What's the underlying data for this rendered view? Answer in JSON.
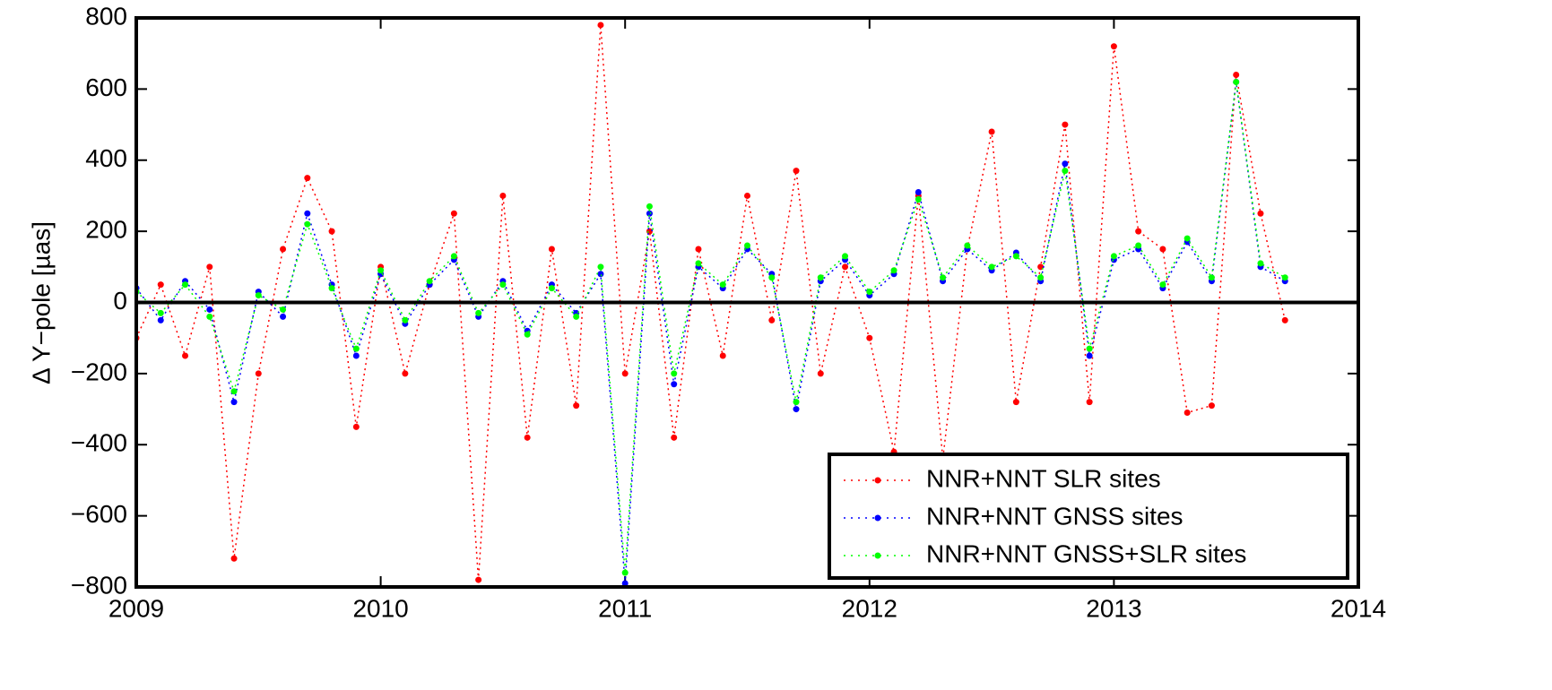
{
  "chart_data": {
    "type": "line",
    "y_label": "Δ Y−pole [µas]",
    "x": [
      2009.0,
      2009.1,
      2009.2,
      2009.3,
      2009.4,
      2009.5,
      2009.6,
      2009.7,
      2009.8,
      2009.9,
      2010.0,
      2010.1,
      2010.2,
      2010.3,
      2010.4,
      2010.5,
      2010.6,
      2010.7,
      2010.8,
      2010.9,
      2011.0,
      2011.1,
      2011.2,
      2011.3,
      2011.4,
      2011.5,
      2011.6,
      2011.7,
      2011.8,
      2011.9,
      2012.0,
      2012.1,
      2012.2,
      2012.3,
      2012.4,
      2012.5,
      2012.6,
      2012.7,
      2012.8,
      2012.9,
      2013.0,
      2013.1,
      2013.2,
      2013.3,
      2013.4,
      2013.5,
      2013.6,
      2013.7
    ],
    "series": [
      {
        "name": "NNR+NNT SLR sites",
        "color": "#ff0000",
        "values": [
          -100,
          50,
          -150,
          100,
          -720,
          -200,
          150,
          350,
          200,
          -350,
          100,
          -200,
          50,
          250,
          -780,
          300,
          -380,
          150,
          -290,
          780,
          -200,
          200,
          -380,
          150,
          -150,
          300,
          -50,
          370,
          -200,
          100,
          -100,
          -420,
          300,
          -440,
          150,
          480,
          -280,
          100,
          500,
          -280,
          720,
          200,
          150,
          -310,
          -290,
          640,
          250,
          -50
        ]
      },
      {
        "name": "NNR+NNT GNSS sites",
        "color": "#0000ff",
        "values": [
          40,
          -50,
          60,
          -20,
          -280,
          30,
          -40,
          250,
          50,
          -150,
          80,
          -60,
          50,
          120,
          -40,
          60,
          -80,
          50,
          -30,
          80,
          -790,
          250,
          -230,
          100,
          40,
          150,
          80,
          -300,
          60,
          120,
          20,
          80,
          310,
          60,
          150,
          90,
          140,
          60,
          390,
          -150,
          120,
          150,
          40,
          170,
          60,
          620,
          100,
          60
        ]
      },
      {
        "name": "NNR+NNT GNSS+SLR sites",
        "color": "#00ff00",
        "values": [
          30,
          -30,
          50,
          -40,
          -250,
          20,
          -20,
          220,
          40,
          -130,
          90,
          -50,
          60,
          130,
          -30,
          50,
          -90,
          40,
          -40,
          100,
          -760,
          270,
          -200,
          110,
          50,
          160,
          70,
          -280,
          70,
          130,
          30,
          90,
          290,
          70,
          160,
          100,
          130,
          70,
          370,
          -130,
          130,
          160,
          50,
          180,
          70,
          620,
          110,
          70
        ]
      }
    ],
    "xlim": [
      2009,
      2014
    ],
    "xticks": [
      2009,
      2010,
      2011,
      2012,
      2013,
      2014
    ],
    "ylim": [
      -800,
      800
    ],
    "yticks": [
      {
        "value": -800,
        "label": "−800"
      },
      {
        "value": -600,
        "label": "−600"
      },
      {
        "value": -400,
        "label": "−400"
      },
      {
        "value": -200,
        "label": "−200"
      },
      0,
      200,
      400,
      600,
      800
    ],
    "zero_line": true,
    "legend": "lower right"
  }
}
